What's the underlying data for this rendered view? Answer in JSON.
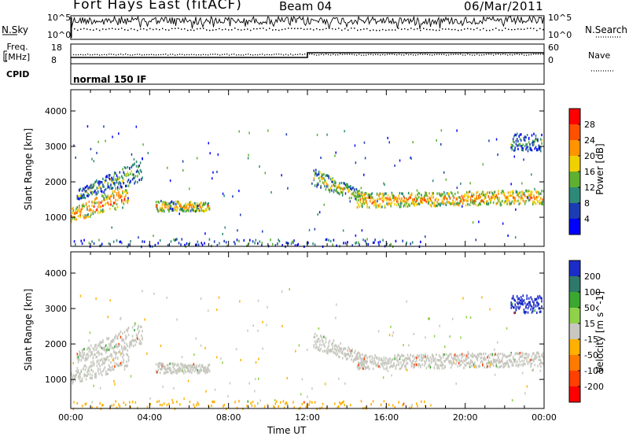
{
  "header": {
    "station": "Fort Hays East (fitACF)",
    "beam": "Beam 04",
    "date": "06/Mar/2011"
  },
  "noise_panel": {
    "left_label": "N.Sky",
    "right_label": "N.Search",
    "left_ticks": [
      "10^5",
      "10^0"
    ],
    "right_ticks": [
      "10^5",
      "10^0"
    ]
  },
  "freq_panel": {
    "left_label_line1": "Freq.",
    "left_label_line2": "[MHz]",
    "right_label": "Nave",
    "left_ticks": [
      "18",
      "8"
    ],
    "right_ticks": [
      "60",
      "0"
    ],
    "freq_values_mhz": [
      11.5,
      11.5,
      14.5,
      14.5
    ],
    "freq_times_hr": [
      0,
      12,
      12,
      24
    ]
  },
  "cpid": {
    "label": "CPID",
    "value": "normal 150 IF"
  },
  "chart_data": [
    {
      "type": "heatmap",
      "name": "power",
      "xlabel": "Time UT",
      "ylabel": "Slant Range [km]",
      "xlim": [
        0,
        24
      ],
      "ylim": [
        180,
        4600
      ],
      "x_ticks": [
        "00:00",
        "04:00",
        "08:00",
        "12:00",
        "16:00",
        "20:00",
        "00:00"
      ],
      "y_ticks": [
        1000,
        2000,
        3000,
        4000
      ],
      "colorbar": {
        "label": "Power [dB]",
        "ticks": [
          4,
          8,
          12,
          16,
          20,
          24,
          28
        ],
        "range": [
          0,
          30
        ],
        "colors": [
          "#0000ff",
          "#1c3cb4",
          "#2e8a78",
          "#5fb030",
          "#f0d000",
          "#ff9400",
          "#ff5000",
          "#ff0000"
        ]
      },
      "bands": [
        {
          "t0": 0.0,
          "t1": 2.9,
          "r0": 900,
          "r1": 1300,
          "r0e": 1350,
          "r1e": 1950,
          "level": 16
        },
        {
          "t0": 0.3,
          "t1": 3.6,
          "r0": 1500,
          "r1": 1800,
          "r0e": 2050,
          "r1e": 2700,
          "level": 6
        },
        {
          "t0": 4.3,
          "t1": 7.0,
          "r0": 1200,
          "r1": 1500,
          "r0e": 1200,
          "r1e": 1450,
          "level": 12
        },
        {
          "t0": 12.3,
          "t1": 15.0,
          "r0": 1900,
          "r1": 2400,
          "r0e": 1400,
          "r1e": 1700,
          "level": 10
        },
        {
          "t0": 14.5,
          "t1": 24.0,
          "r0": 1300,
          "r1": 1700,
          "r0e": 1400,
          "r1e": 1800,
          "level": 14
        },
        {
          "t0": 22.3,
          "t1": 23.9,
          "r0": 2900,
          "r1": 3400,
          "r0e": 2900,
          "r1e": 3400,
          "level": 4
        },
        {
          "t0": 0.0,
          "t1": 18.0,
          "r0": 200,
          "r1": 420,
          "r0e": 200,
          "r1e": 420,
          "level": 7
        }
      ]
    },
    {
      "type": "heatmap",
      "name": "velocity",
      "xlabel": "Time UT",
      "ylabel": "Slant Range [km]",
      "xlim": [
        0,
        24
      ],
      "ylim": [
        180,
        4600
      ],
      "x_ticks": [
        "00:00",
        "04:00",
        "08:00",
        "12:00",
        "16:00",
        "20:00",
        "00:00"
      ],
      "y_ticks": [
        1000,
        2000,
        3000,
        4000
      ],
      "colorbar": {
        "label": "Velocity [m s^-1]",
        "ticks": [
          200,
          100,
          50,
          15,
          -15,
          -50,
          -100,
          -200
        ],
        "colors": [
          "#1c2cc8",
          "#2e7a6a",
          "#3aa830",
          "#8fd24a",
          "#c8c8c0",
          "#ffb000",
          "#ff7a00",
          "#ff4000",
          "#ff0000"
        ]
      },
      "bands": [
        {
          "t0": 0.0,
          "t1": 2.9,
          "r0": 900,
          "r1": 1300,
          "r0e": 1350,
          "r1e": 1950,
          "level": 0
        },
        {
          "t0": 0.3,
          "t1": 3.6,
          "r0": 1500,
          "r1": 1800,
          "r0e": 2050,
          "r1e": 2700,
          "level": 0
        },
        {
          "t0": 4.3,
          "t1": 7.0,
          "r0": 1200,
          "r1": 1500,
          "r0e": 1200,
          "r1e": 1450,
          "level": 5
        },
        {
          "t0": 12.3,
          "t1": 15.0,
          "r0": 1900,
          "r1": 2400,
          "r0e": 1400,
          "r1e": 1700,
          "level": 0
        },
        {
          "t0": 14.5,
          "t1": 24.0,
          "r0": 1300,
          "r1": 1700,
          "r0e": 1400,
          "r1e": 1800,
          "level": 0
        },
        {
          "t0": 22.3,
          "t1": 23.9,
          "r0": 2900,
          "r1": 3400,
          "r0e": 2900,
          "r1e": 3400,
          "level": 220
        },
        {
          "t0": 0.0,
          "t1": 18.0,
          "r0": 200,
          "r1": 420,
          "r0e": 200,
          "r1e": 420,
          "level": -40
        }
      ]
    }
  ]
}
